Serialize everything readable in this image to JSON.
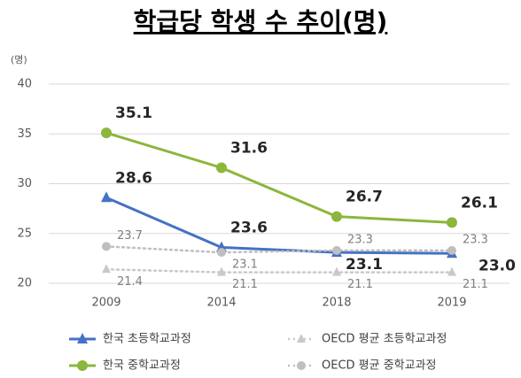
{
  "chart_data": {
    "type": "line",
    "title": "학급당 학생 수 추이(명)",
    "y_label": "(명)",
    "categories": [
      "2009",
      "2014",
      "2018",
      "2019"
    ],
    "series": [
      {
        "name": "한국 초등학교과정",
        "color": "#4472c4",
        "marker": "triangle",
        "dash": "solid",
        "values": [
          28.6,
          23.6,
          23.1,
          23.0
        ],
        "value_labels": [
          "28.6",
          "23.6",
          "23.1",
          "23.0"
        ]
      },
      {
        "name": "OECD 평균 초등학교과정",
        "color": "#c9c9c9",
        "marker": "triangle",
        "dash": "dotted",
        "values": [
          21.4,
          21.1,
          21.1,
          21.1
        ],
        "value_labels": [
          "21.4",
          "21.1",
          "21.1",
          "21.1"
        ]
      },
      {
        "name": "한국 중학교과정",
        "color": "#8cb63c",
        "marker": "circle",
        "dash": "solid",
        "values": [
          35.1,
          31.6,
          26.7,
          26.1
        ],
        "value_labels": [
          "35.1",
          "31.6",
          "26.7",
          "26.1"
        ]
      },
      {
        "name": "OECD 평균 중학교과정",
        "color": "#bfbfbf",
        "marker": "circle",
        "dash": "dotted",
        "values": [
          23.7,
          23.1,
          23.3,
          23.3
        ],
        "value_labels": [
          "23.7",
          "23.1",
          "23.3",
          "23.3"
        ]
      }
    ],
    "ylim": [
      20,
      40
    ],
    "yticks": [
      20,
      25,
      30,
      35,
      40
    ],
    "grid": true,
    "legend": "bottom"
  }
}
